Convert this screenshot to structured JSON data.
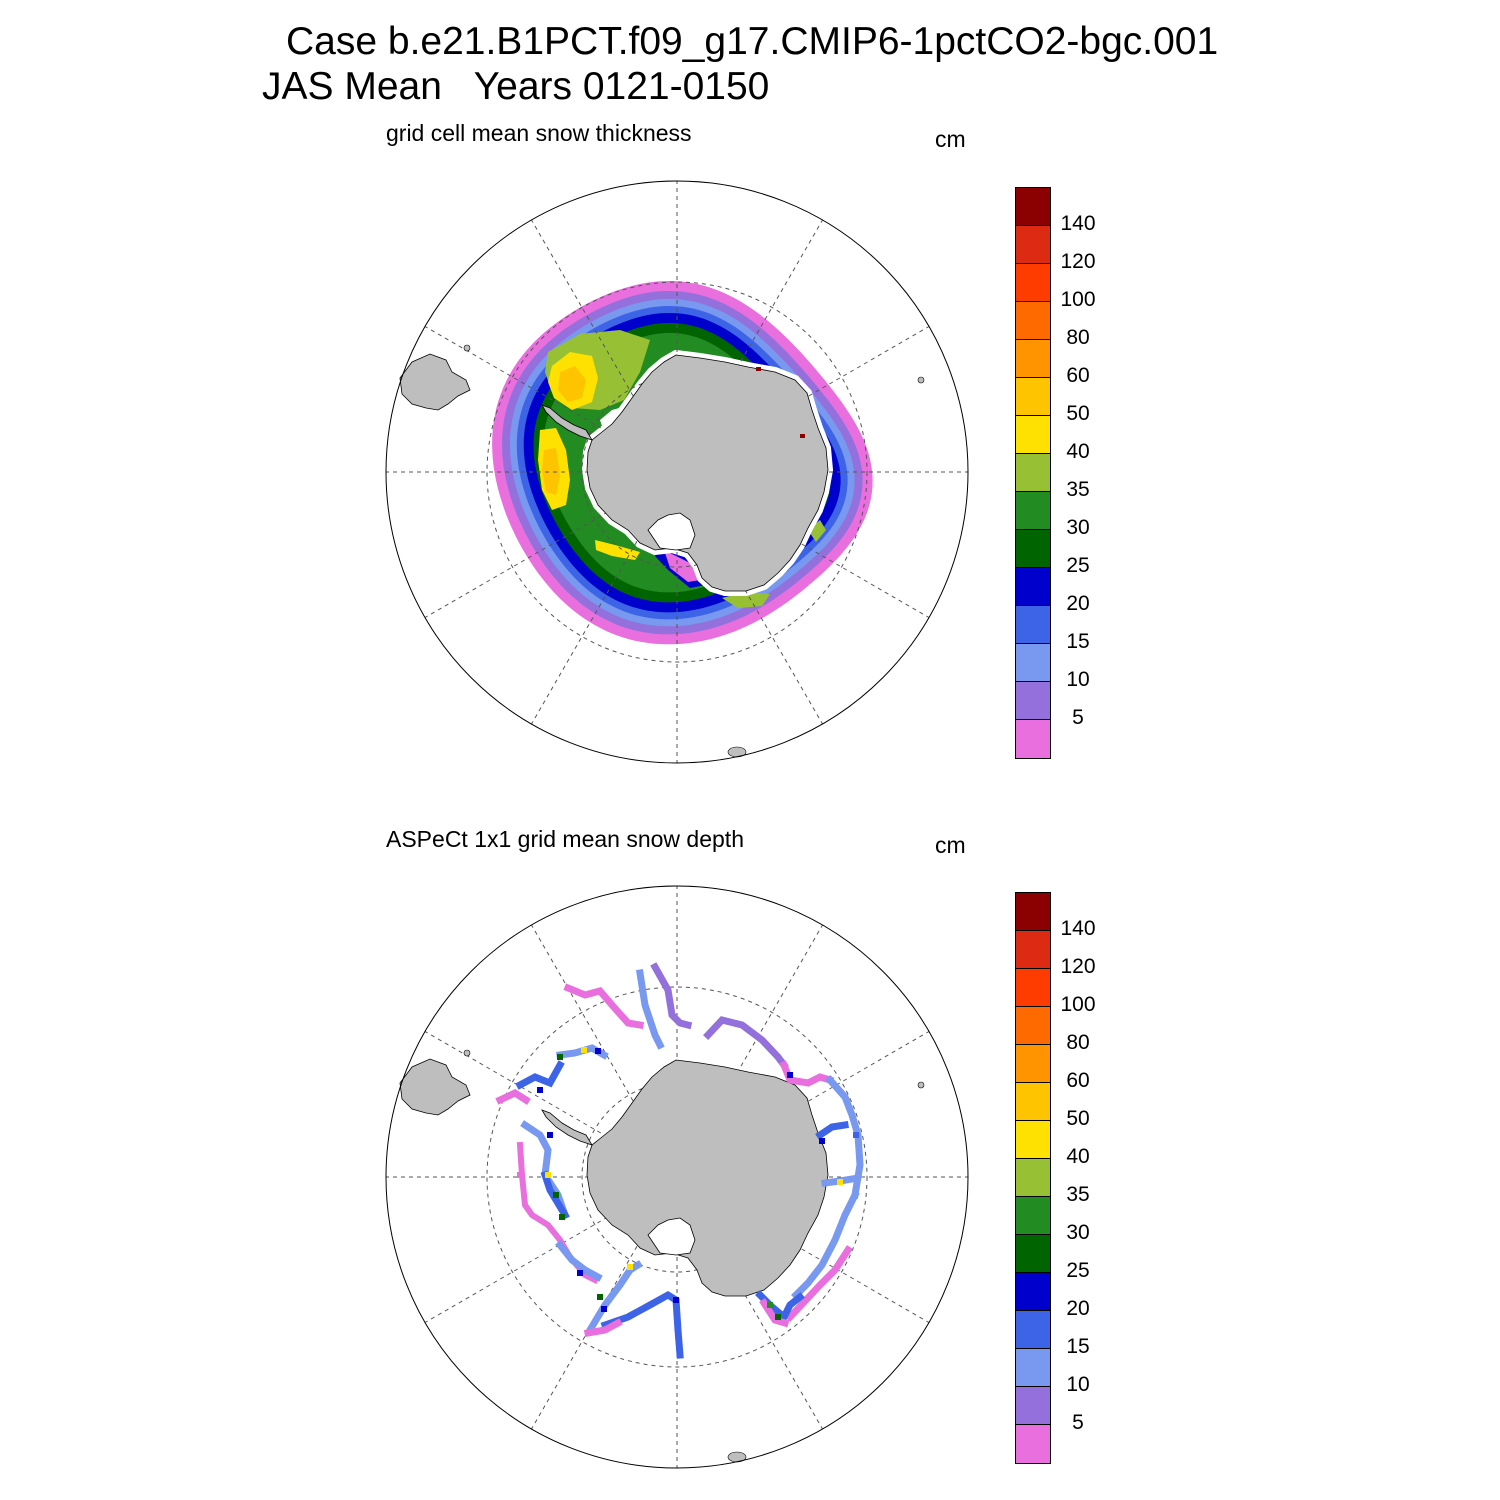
{
  "header": {
    "title_line1": "Case b.e21.B1PCT.f09_g17.CMIP6-1pctCO2-bgc.001",
    "title_line2": "JAS Mean   Years 0121-0150"
  },
  "panels": [
    {
      "subtitle": "grid cell mean snow thickness",
      "units": "cm",
      "field": "model"
    },
    {
      "subtitle": "ASPeCt 1x1 grid mean snow depth",
      "units": "cm",
      "field": "observations"
    }
  ],
  "colorbar": {
    "labels": [
      "140",
      "120",
      "100",
      "80",
      "60",
      "50",
      "40",
      "35",
      "30",
      "25",
      "20",
      "15",
      "10",
      "5"
    ],
    "colors_top_to_bottom": [
      "#8b0000",
      "#dd2a13",
      "#ff3c00",
      "#ff6a00",
      "#ff9400",
      "#ffc400",
      "#ffe100",
      "#98c035",
      "#228b22",
      "#006400",
      "#0000cd",
      "#3d64e6",
      "#7899ef",
      "#9370db",
      "#e86fdd"
    ]
  },
  "colors": {
    "land": "#bebebe",
    "graticule": "#555555"
  }
}
